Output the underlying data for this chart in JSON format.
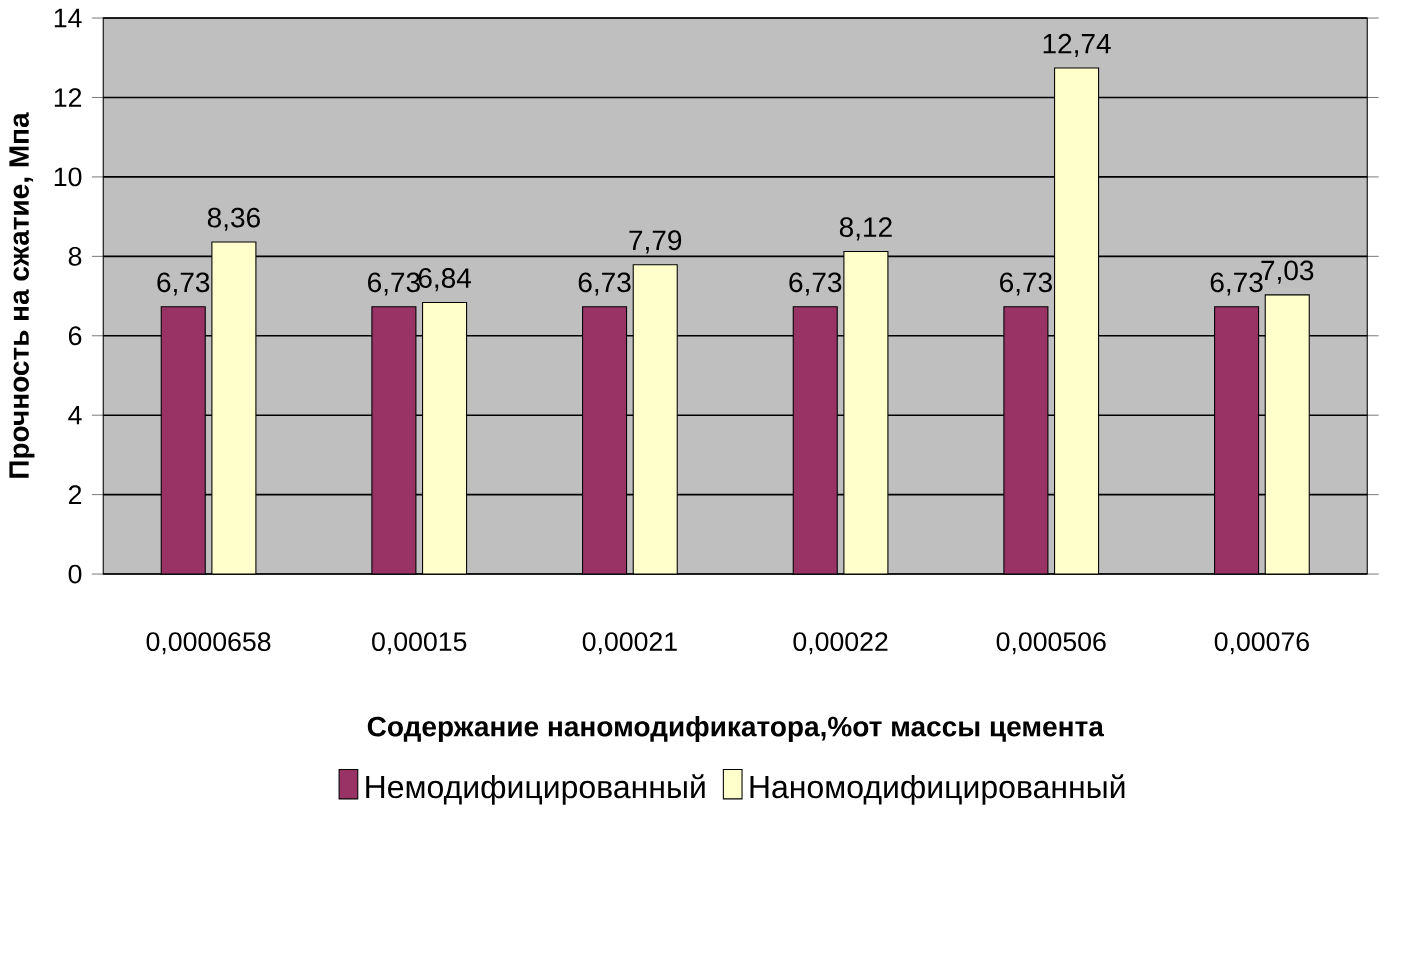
{
  "chart_data": {
    "type": "bar",
    "categories": [
      "0,0000658",
      "0,00015",
      "0,00021",
      "0,00022",
      "0,000506",
      "0,00076"
    ],
    "series": [
      {
        "name": "Немодифицированный",
        "color": "#993366",
        "values": [
          6.73,
          6.73,
          6.73,
          6.73,
          6.73,
          6.73
        ],
        "value_labels": [
          "6,73",
          "6,73",
          "6,73",
          "6,73",
          "6,73",
          "6,73"
        ]
      },
      {
        "name": "Наномодифицированный",
        "color": "#ffffcc",
        "values": [
          8.36,
          6.84,
          7.79,
          8.12,
          12.74,
          7.03
        ],
        "value_labels": [
          "8,36",
          "6,84",
          "7,79",
          "8,12",
          "12,74",
          "7,03"
        ]
      }
    ],
    "xlabel": "Содержание наномодификатора,%от массы цемента",
    "ylabel": "Прочность на сжатие, Мпа",
    "ylim": [
      0,
      14
    ],
    "yticks": [
      0,
      2,
      4,
      6,
      8,
      10,
      12,
      14
    ],
    "grid": "y",
    "legend": "bottom"
  }
}
